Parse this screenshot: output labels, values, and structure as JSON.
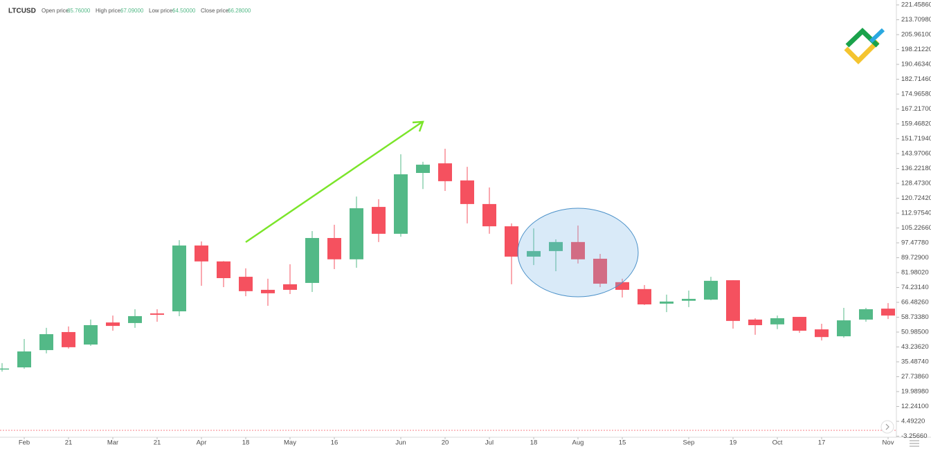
{
  "header": {
    "symbol": "LTCUSD",
    "stats": [
      {
        "label": "Open price:",
        "value": "65.76000"
      },
      {
        "label": "High price:",
        "value": "67.09000"
      },
      {
        "label": "Low price:",
        "value": "64.50000"
      },
      {
        "label": "Close price:",
        "value": "66.28000"
      }
    ]
  },
  "chart_data": {
    "type": "candlestick",
    "up_color": "#53b987",
    "down_color": "#f5515f",
    "categories": [
      null,
      "Feb",
      null,
      "21",
      null,
      "Mar",
      null,
      "21",
      null,
      "Apr",
      null,
      "18",
      null,
      "May",
      null,
      "16",
      null,
      null,
      "Jun",
      null,
      "20",
      null,
      "Jul",
      null,
      "18",
      null,
      "Aug",
      null,
      "15",
      null,
      null,
      "Sep",
      null,
      "19",
      null,
      "Oct",
      null,
      "17",
      null,
      null,
      "Nov"
    ],
    "open": [
      31.6,
      32.6,
      41.6,
      51.0,
      44.5,
      56.0,
      55.7,
      60.7,
      61.8,
      96.1,
      87.8,
      79.8,
      73.0,
      75.9,
      76.6,
      100.0,
      88.9,
      116.2,
      102.2,
      133.9,
      138.9,
      130.0,
      117.7,
      106.1,
      90.3,
      93.2,
      97.9,
      89.2,
      77.0,
      73.4,
      65.8,
      67.3,
      67.9,
      78.0,
      57.5,
      55.0,
      58.9,
      52.4,
      48.8,
      57.5,
      63.2
    ],
    "high": [
      34.8,
      47.4,
      53.2,
      53.9,
      57.5,
      59.6,
      62.9,
      62.9,
      98.9,
      98.2,
      88.0,
      84.2,
      78.8,
      86.3,
      103.6,
      106.9,
      121.6,
      120.2,
      143.6,
      139.7,
      146.5,
      137.1,
      126.3,
      107.6,
      105.0,
      99.3,
      106.5,
      91.7,
      78.8,
      75.5,
      70.5,
      72.6,
      79.8,
      78.0,
      58.2,
      59.6,
      58.9,
      55.3,
      63.6,
      63.6,
      66.1
    ],
    "low": [
      30.4,
      31.9,
      39.9,
      42.4,
      43.8,
      51.7,
      53.2,
      56.4,
      59.3,
      75.1,
      74.4,
      69.7,
      64.7,
      70.8,
      71.9,
      83.8,
      84.5,
      97.9,
      100.7,
      125.5,
      124.5,
      107.6,
      102.2,
      75.9,
      85.9,
      82.7,
      86.7,
      74.4,
      69.0,
      65.1,
      61.4,
      64.0,
      67.6,
      52.8,
      49.6,
      52.5,
      50.6,
      46.6,
      48.1,
      56.4,
      57.8
    ],
    "close": [
      32.0,
      40.9,
      49.9,
      43.1,
      54.6,
      54.2,
      59.3,
      60.0,
      96.1,
      87.8,
      79.1,
      72.3,
      71.2,
      73.0,
      100.0,
      88.9,
      115.5,
      102.2,
      133.2,
      138.2,
      129.6,
      117.7,
      106.1,
      90.3,
      93.2,
      97.9,
      88.9,
      76.2,
      73.0,
      65.4,
      66.9,
      68.3,
      77.7,
      56.8,
      54.6,
      58.2,
      51.7,
      48.4,
      57.1,
      62.9,
      59.6
    ],
    "ylim": [
      -3.8,
      224.0
    ],
    "yticks": [
      {
        "value": 221.4586,
        "label": "221.45860"
      },
      {
        "value": 213.7098,
        "label": "213.70980"
      },
      {
        "value": 205.961,
        "label": "205.96100"
      },
      {
        "value": 198.2122,
        "label": "198.21220"
      },
      {
        "value": 190.4634,
        "label": "190.46340"
      },
      {
        "value": 182.7146,
        "label": "182.71460"
      },
      {
        "value": 174.9658,
        "label": "174.96580"
      },
      {
        "value": 167.217,
        "label": "167.21700"
      },
      {
        "value": 159.4682,
        "label": "159.46820"
      },
      {
        "value": 151.7194,
        "label": "151.71940"
      },
      {
        "value": 143.9706,
        "label": "143.97060"
      },
      {
        "value": 136.2218,
        "label": "136.22180"
      },
      {
        "value": 128.473,
        "label": "128.47300"
      },
      {
        "value": 120.7242,
        "label": "120.72420"
      },
      {
        "value": 112.9754,
        "label": "112.97540"
      },
      {
        "value": 105.2266,
        "label": "105.22660"
      },
      {
        "value": 97.4778,
        "label": "97.47780"
      },
      {
        "value": 89.729,
        "label": "89.72900"
      },
      {
        "value": 81.9802,
        "label": "81.98020"
      },
      {
        "value": 74.2314,
        "label": "74.23140"
      },
      {
        "value": 66.4826,
        "label": "66.48260"
      },
      {
        "value": 58.7338,
        "label": "58.73380"
      },
      {
        "value": 50.985,
        "label": "50.98500"
      },
      {
        "value": 43.2362,
        "label": "43.23620"
      },
      {
        "value": 35.4874,
        "label": "35.48740"
      },
      {
        "value": 27.7386,
        "label": "27.73860"
      },
      {
        "value": 19.9898,
        "label": "19.98980"
      },
      {
        "value": 12.241,
        "label": "12.24100"
      },
      {
        "value": 4.4922,
        "label": "4.49220"
      },
      {
        "value": -3.2566,
        "label": "-3.25660"
      }
    ]
  }
}
